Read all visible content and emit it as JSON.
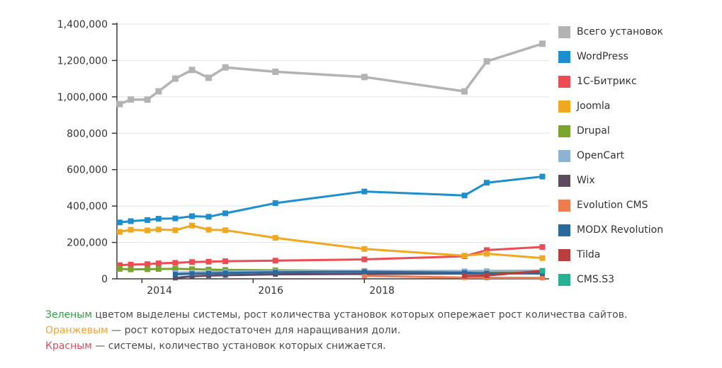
{
  "chart": {
    "name": "cms-installations-chart",
    "background": "#ffffff",
    "grid_color": "#e2e2e2",
    "axis_color": "#3a3a3a",
    "tick_label_color": "#333333",
    "y_axis": {
      "ticks": [
        {
          "value": 0,
          "label": "0"
        },
        {
          "value": 200000,
          "label": "200,000"
        },
        {
          "value": 400000,
          "label": "400,000"
        },
        {
          "value": 600000,
          "label": "600,000"
        },
        {
          "value": 800000,
          "label": "800,000"
        },
        {
          "value": 1000000,
          "label": "1,000,000"
        },
        {
          "value": 1200000,
          "label": "1,200,000"
        },
        {
          "value": 1400000,
          "label": "1,400,000"
        }
      ]
    },
    "x_axis": {
      "ticks": [
        {
          "year": 2014,
          "label": "2014"
        },
        {
          "year": 2016,
          "label": "2016"
        },
        {
          "year": 2018,
          "label": "2018"
        }
      ]
    }
  },
  "chart_data": {
    "type": "line",
    "title": "",
    "xlabel": "",
    "ylabel": "",
    "ylim": [
      0,
      1400000
    ],
    "xlim": [
      2013.5,
      2021.35
    ],
    "grid": true,
    "legend_position": "right",
    "x": [
      2013.6,
      2013.8,
      2014.1,
      2014.3,
      2014.6,
      2014.9,
      2015.2,
      2015.5,
      2016.4,
      2018.0,
      2019.8,
      2020.2,
      2021.2
    ],
    "series": [
      {
        "name": "Всего установок",
        "color": "#b3b3b3",
        "line_width": 3.5,
        "marker": 9,
        "values": [
          960000,
          985000,
          985000,
          1030000,
          1100000,
          1148000,
          1105000,
          1162000,
          1138000,
          1109000,
          1030000,
          1195000,
          1292000
        ]
      },
      {
        "name": "WordPress",
        "color": "#1e8fce",
        "line_width": 3,
        "marker": 8,
        "values": [
          310000,
          317000,
          323000,
          330000,
          332000,
          344000,
          341000,
          360000,
          416000,
          480000,
          458000,
          528000,
          562000
        ]
      },
      {
        "name": "1С-Битрикс",
        "color": "#ee4c55",
        "line_width": 3,
        "marker": 8,
        "values": [
          75000,
          78000,
          81000,
          85000,
          88000,
          92000,
          94000,
          97000,
          100000,
          107000,
          124000,
          158000,
          175000
        ]
      },
      {
        "name": "Joomla",
        "color": "#efa820",
        "line_width": 3,
        "marker": 8,
        "values": [
          258000,
          270000,
          266000,
          271000,
          267000,
          293000,
          270000,
          267000,
          225000,
          164000,
          127000,
          138000,
          114000
        ]
      },
      {
        "name": "Drupal",
        "color": "#79a52c",
        "line_width": 3,
        "marker": 8,
        "values": [
          55000,
          52000,
          53000,
          54000,
          55000,
          53000,
          51000,
          49000,
          47000,
          43000,
          41000,
          41000,
          42000
        ]
      },
      {
        "name": "OpenCart",
        "color": "#8fb2d1",
        "line_width": 3,
        "marker": 7,
        "values": [
          null,
          null,
          null,
          null,
          34000,
          36000,
          38000,
          40000,
          42000,
          44000,
          43000,
          44000,
          45000
        ]
      },
      {
        "name": "Wix",
        "color": "#5d4a61",
        "line_width": 3,
        "marker": 7,
        "values": [
          null,
          null,
          null,
          null,
          5000,
          14000,
          18000,
          20000,
          25000,
          27000,
          29000,
          30000,
          32000
        ]
      },
      {
        "name": "Evolution CMS",
        "color": "#ec7c51",
        "line_width": 3,
        "marker": 7,
        "values": [
          null,
          null,
          null,
          null,
          null,
          null,
          null,
          null,
          null,
          16000,
          7000,
          6000,
          5000
        ]
      },
      {
        "name": "MODX Revolution",
        "color": "#2a69a0",
        "line_width": 3,
        "marker": 7,
        "values": [
          null,
          null,
          null,
          null,
          25000,
          28000,
          30000,
          32000,
          36000,
          39000,
          34000,
          30000,
          29000
        ]
      },
      {
        "name": "Tilda",
        "color": "#b93e3e",
        "line_width": 3,
        "marker": 7,
        "values": [
          null,
          null,
          null,
          null,
          null,
          null,
          null,
          null,
          null,
          null,
          16000,
          18000,
          44000
        ]
      },
      {
        "name": "CMS.S3",
        "color": "#27b092",
        "line_width": 3,
        "marker": 8,
        "values": [
          null,
          null,
          null,
          null,
          null,
          null,
          null,
          null,
          null,
          null,
          null,
          null,
          44000
        ]
      }
    ]
  },
  "footnotes": [
    {
      "lead": "Зеленым",
      "lead_color": "#2e9e41",
      "text": " цветом выделены системы, рост количества установок которых опережает рост количества сайтов."
    },
    {
      "lead": "Оранжевым",
      "lead_color": "#f0a430",
      "text": " — рост которых недостаточен для наращивания доли."
    },
    {
      "lead": "Красным",
      "lead_color": "#e04b5a",
      "text": " — системы, количество установок которых снижается."
    }
  ]
}
